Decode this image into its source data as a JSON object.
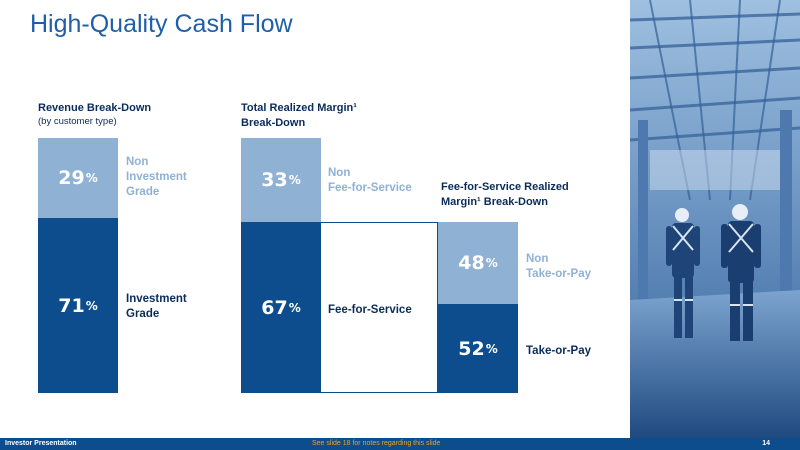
{
  "slide": {
    "title": "High-Quality Cash Flow"
  },
  "revenue": {
    "title": "Revenue Break-Down",
    "subtitle": "(by customer type)",
    "segments": [
      {
        "value": "29",
        "pct": "%",
        "label_lines": [
          "Non",
          "Investment",
          "Grade"
        ]
      },
      {
        "value": "71",
        "pct": "%",
        "label_lines": [
          "Investment",
          "Grade"
        ]
      }
    ]
  },
  "margin": {
    "title_line1": "Total Realized Margin¹",
    "title_line2": "Break-Down",
    "segments": [
      {
        "value": "33",
        "pct": "%",
        "label_lines": [
          "Non",
          "Fee-for-Service"
        ]
      },
      {
        "value": "67",
        "pct": "%",
        "label_lines": [
          "Fee-for-Service"
        ]
      }
    ]
  },
  "ffs": {
    "title_line1": "Fee-for-Service Realized",
    "title_line2": "Margin¹ Break-Down",
    "segments": [
      {
        "value": "48",
        "pct": "%",
        "label_lines": [
          "Non",
          "Take-or-Pay"
        ]
      },
      {
        "value": "52",
        "pct": "%",
        "label_lines": [
          "Take-or-Pay"
        ]
      }
    ]
  },
  "footer": {
    "left": "Investor Presentation",
    "middle": "See slide 18 for notes regarding this slide",
    "page": "14"
  },
  "colors": {
    "light_blue": "#8fb1d4",
    "dark_blue": "#0d4d8e",
    "title_blue": "#1f5fa8",
    "footer_note": "#f0a020"
  }
}
